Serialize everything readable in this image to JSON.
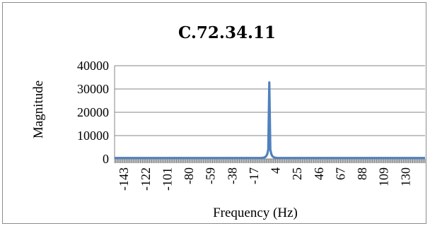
{
  "chart_data": {
    "type": "line",
    "title": "C.72.34.11",
    "xlabel": "Frequency (Hz)",
    "ylabel": "Magnitude",
    "ylim": [
      0,
      40000
    ],
    "yticks": [
      "40000",
      "30000",
      "20000",
      "10000",
      "0"
    ],
    "xlim": [
      -152,
      149
    ],
    "xtick_values": [
      -143,
      -122,
      -101,
      -80,
      -59,
      -38,
      -17,
      4,
      25,
      46,
      67,
      88,
      109,
      130
    ],
    "xtick_labels": [
      "-143",
      "-122",
      "-101",
      "-80",
      "-59",
      "-38",
      "-17",
      "4",
      "25",
      "46",
      "67",
      "88",
      "109",
      "130"
    ],
    "grid": "horizontal",
    "series": [
      {
        "color": "#4f81bd",
        "baseline": 400,
        "x": [
          -9,
          -8,
          -7,
          -6,
          -5,
          -4,
          -3,
          -2,
          -1,
          0,
          1,
          2,
          3,
          4,
          5
        ],
        "values": [
          450,
          500,
          600,
          800,
          1200,
          2000,
          4000,
          32800,
          4000,
          2000,
          1200,
          800,
          600,
          500,
          450
        ]
      }
    ]
  }
}
